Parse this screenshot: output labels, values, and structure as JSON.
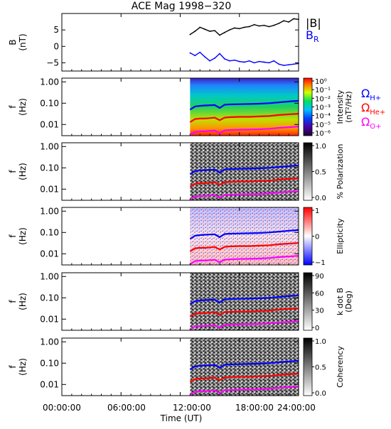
{
  "title": "ACE Mag 1998−320",
  "x_axis": {
    "label": "Time (UT)",
    "ticks": [
      "00:00:00",
      "06:00:00",
      "12:00:00",
      "18:00:00",
      "24:00:00"
    ],
    "tick_hours": [
      0,
      6,
      12,
      18,
      24
    ],
    "range_hours": [
      0,
      24
    ]
  },
  "colors": {
    "btotal": "#000000",
    "br": "#0000ff",
    "h_plus": "#0000ff",
    "he_plus": "#ff0000",
    "o_plus": "#ff00ff"
  },
  "panels": [
    {
      "id": "bfield",
      "ylabel_line1": "B",
      "ylabel_line2": "(nT)",
      "yticks": [
        "5",
        "0",
        "−5"
      ]
    },
    {
      "id": "intensity",
      "ylabel_line1": "f",
      "ylabel_line2": "(Hz)",
      "yticks": [
        "1.00",
        "0.10",
        "0.01"
      ],
      "cbar_title_line1": "Intensity",
      "cbar_title_line2": "(nT²/Hz)",
      "cbar_ticks": [
        "10⁰",
        "10⁻¹",
        "10⁻²",
        "10⁻³",
        "10⁻⁴",
        "10⁻⁵",
        "10⁻⁶"
      ]
    },
    {
      "id": "polarization",
      "ylabel_line1": "f",
      "ylabel_line2": "(Hz)",
      "yticks": [
        "1.00",
        "0.10",
        "0.01"
      ],
      "cbar_title_line1": "% Polarization",
      "cbar_title_line2": "",
      "cbar_ticks": [
        "1.0",
        "0.5",
        "0.0"
      ]
    },
    {
      "id": "ellipticity",
      "ylabel_line1": "f",
      "ylabel_line2": "(Hz)",
      "yticks": [
        "1.00",
        "0.10",
        "0.01"
      ],
      "cbar_title_line1": "Ellipticity",
      "cbar_title_line2": "",
      "cbar_ticks": [
        "1",
        "0",
        "−1"
      ]
    },
    {
      "id": "kdotb",
      "ylabel_line1": "f",
      "ylabel_line2": "(Hz)",
      "yticks": [
        "1.00",
        "0.10",
        "0.01"
      ],
      "cbar_title_line1": "k dot B",
      "cbar_title_line2": "(Deg)",
      "cbar_ticks": [
        "90",
        "60",
        "30",
        "0"
      ]
    },
    {
      "id": "coherency",
      "ylabel_line1": "f",
      "ylabel_line2": "(Hz)",
      "yticks": [
        "1.00",
        "0.10",
        "0.01"
      ],
      "cbar_title_line1": "Coherency",
      "cbar_title_line2": "",
      "cbar_ticks": [
        "1.0",
        "0.5",
        "0.0"
      ]
    }
  ],
  "legend": {
    "btotal": "|B|",
    "br_main": "B",
    "br_sub": "R",
    "omega": "Ω",
    "h_sub": "H+",
    "he_sub": "He+",
    "o_sub": "O+"
  },
  "chart_data": [
    {
      "type": "line",
      "panel": "bfield",
      "ylabel": "B (nT)",
      "ylim": [
        -7.5,
        10
      ],
      "xlim": [
        0,
        24
      ],
      "series": [
        {
          "name": "|B|",
          "x": [
            13.0,
            13.5,
            14.0,
            14.5,
            15.0,
            15.5,
            16.0,
            16.5,
            17.0,
            17.5,
            18.0,
            18.5,
            19.0,
            19.5,
            20.0,
            20.5,
            21.0,
            21.5,
            22.0,
            22.5,
            23.0,
            23.5,
            24.0
          ],
          "values": [
            3.6,
            4.6,
            5.8,
            5.2,
            4.6,
            4.8,
            3.4,
            4.2,
            5.0,
            5.6,
            5.4,
            5.8,
            6.0,
            6.6,
            6.2,
            6.4,
            6.0,
            6.4,
            7.0,
            7.8,
            7.4,
            8.4,
            8.2
          ]
        },
        {
          "name": "BR",
          "x": [
            13.0,
            13.5,
            14.0,
            14.5,
            15.0,
            15.5,
            16.0,
            16.5,
            17.0,
            17.5,
            18.0,
            18.5,
            19.0,
            19.5,
            20.0,
            20.5,
            21.0,
            21.5,
            22.0,
            22.5,
            23.0,
            23.5,
            24.0
          ],
          "values": [
            -2.0,
            -2.8,
            -1.8,
            -3.2,
            -4.4,
            -3.6,
            -2.2,
            -3.8,
            -4.4,
            -4.2,
            -4.6,
            -4.8,
            -4.4,
            -5.0,
            -4.6,
            -4.8,
            -5.0,
            -4.4,
            -5.4,
            -5.8,
            -5.6,
            -5.4,
            -5.2
          ]
        }
      ]
    },
    {
      "type": "heatmap",
      "panels": [
        "intensity",
        "polarization",
        "ellipticity",
        "kdotb",
        "coherency"
      ],
      "ylabel": "f (Hz)",
      "yscale": "log",
      "ylim": [
        0.003,
        1.5
      ],
      "xlim": [
        0,
        24
      ],
      "data_range_hours": [
        13,
        24
      ],
      "series": [
        {
          "name": "ΩH+",
          "x": [
            13.0,
            13.5,
            14.0,
            14.5,
            15.0,
            15.5,
            16.0,
            16.5,
            17.0,
            18.0,
            19.0,
            20.0,
            21.0,
            22.0,
            23.0,
            24.0
          ],
          "values": [
            0.05,
            0.07,
            0.075,
            0.078,
            0.08,
            0.082,
            0.06,
            0.085,
            0.088,
            0.09,
            0.092,
            0.095,
            0.1,
            0.11,
            0.12,
            0.13
          ]
        },
        {
          "name": "ΩHe+",
          "x": [
            13.0,
            13.5,
            14.0,
            14.5,
            15.0,
            15.5,
            16.0,
            16.5,
            17.0,
            18.0,
            19.0,
            20.0,
            21.0,
            22.0,
            23.0,
            24.0
          ],
          "values": [
            0.013,
            0.018,
            0.019,
            0.019,
            0.02,
            0.021,
            0.016,
            0.021,
            0.022,
            0.023,
            0.023,
            0.024,
            0.025,
            0.028,
            0.03,
            0.032
          ]
        },
        {
          "name": "ΩO+",
          "x": [
            13.0,
            13.5,
            14.0,
            14.5,
            15.0,
            15.5,
            16.0,
            16.5,
            17.0,
            18.0,
            19.0,
            20.0,
            21.0,
            22.0,
            23.0,
            24.0
          ],
          "values": [
            0.0033,
            0.0045,
            0.0048,
            0.0048,
            0.005,
            0.0052,
            0.004,
            0.0053,
            0.0055,
            0.0057,
            0.0058,
            0.006,
            0.0063,
            0.007,
            0.0075,
            0.008
          ]
        }
      ]
    }
  ]
}
